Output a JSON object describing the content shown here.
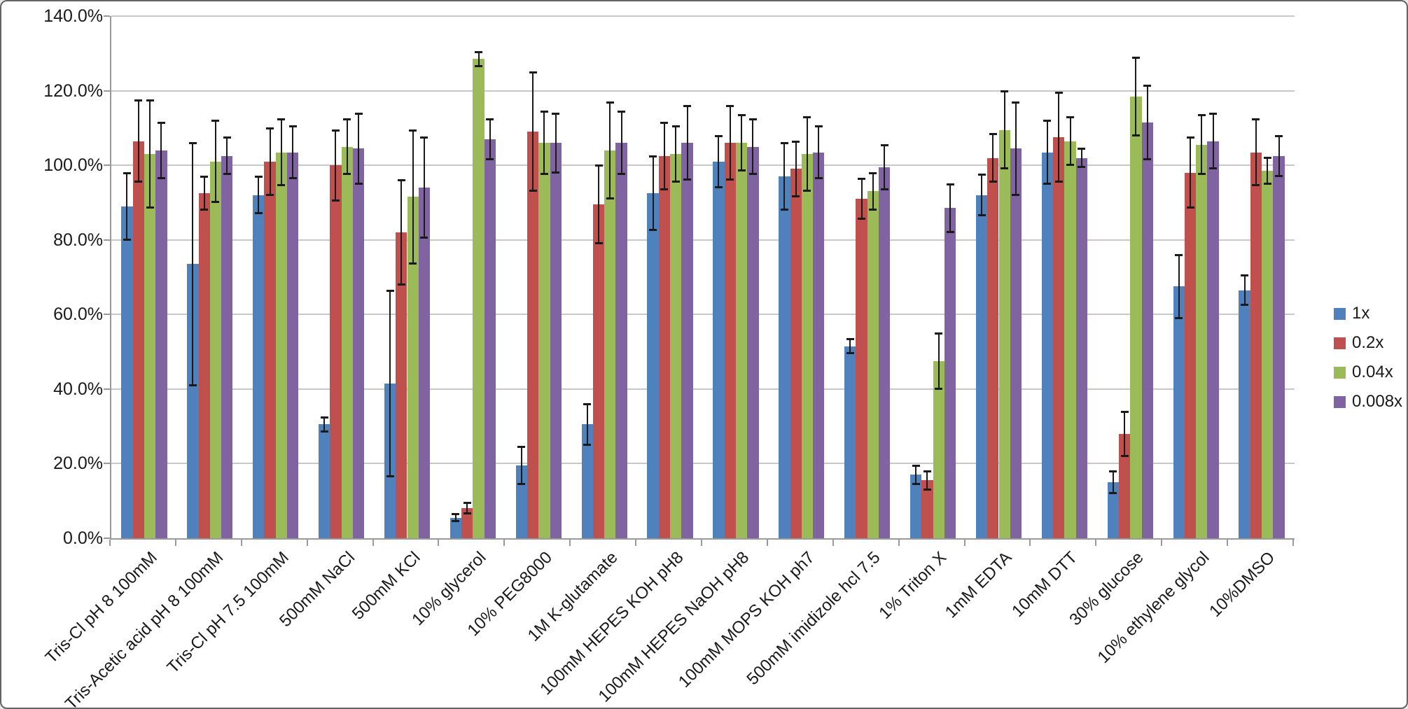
{
  "window": {
    "background": "#ffffff",
    "border_color": "#646464"
  },
  "chart_data": {
    "type": "bar",
    "title": "",
    "xlabel": "",
    "ylabel": "",
    "grid": true,
    "legend_position": "right",
    "error_bar_color": "#1a1a1a",
    "axis_color": "#9a9a9a",
    "gridline_color": "#c8c8c8",
    "categories": [
      "Tris-Cl pH 8 100mM",
      "Tris-Acetic acid pH 8 100mM",
      "Tris-Cl pH 7.5 100mM",
      "500mM NaCl",
      "500mM KCl",
      "10% glycerol",
      "10% PEG8000",
      "1M K-glutamate",
      "100mM HEPES KOH pH8",
      "100mM HEPES NaOH pH8",
      "100mM MOPS KOH ph7",
      "500mM imidizole hcl  7.5",
      "1% Triton X",
      "1mM EDTA",
      "10mM DTT",
      "30% glucose",
      "10% ethylene glycol",
      "10%DMSO"
    ],
    "series": [
      {
        "name": "1x",
        "color": "#4F81BD",
        "values": [
          89,
          73.5,
          92,
          30.5,
          41.5,
          5.5,
          19.5,
          30.5,
          92.5,
          101,
          97,
          51.5,
          17,
          92,
          103.5,
          15,
          67.5,
          66.5
        ],
        "errors": [
          9,
          32.5,
          5,
          2,
          25,
          1,
          5,
          5.5,
          10,
          7,
          9,
          2,
          2.5,
          5.5,
          8.5,
          3,
          8.5,
          4
        ]
      },
      {
        "name": "0.2x",
        "color": "#C0504D",
        "values": [
          106.5,
          92.5,
          101,
          100,
          82,
          8,
          109,
          89.5,
          102.5,
          106,
          99,
          91,
          15.5,
          102,
          107.5,
          28,
          98,
          103.5
        ],
        "errors": [
          11,
          4.5,
          9,
          9.5,
          14,
          1.5,
          16,
          10.5,
          9,
          10,
          7.5,
          5.5,
          2.5,
          6.5,
          12,
          6,
          9.5,
          9
        ]
      },
      {
        "name": "0.04x",
        "color": "#9BBB59",
        "values": [
          103,
          101,
          103.5,
          105,
          91.5,
          128.5,
          106,
          104,
          103,
          106,
          103,
          93,
          47.5,
          109.5,
          106.5,
          118.5,
          105.5,
          98.5
        ],
        "errors": [
          14.5,
          11,
          9,
          7.5,
          18,
          2,
          8.5,
          13,
          7.5,
          7.5,
          10,
          5,
          7.5,
          10.5,
          6.5,
          10.5,
          8,
          3.5
        ]
      },
      {
        "name": "0.008x",
        "color": "#8064A2",
        "values": [
          104,
          102.5,
          103.5,
          104.5,
          94,
          107,
          106,
          106,
          106,
          105,
          103.5,
          99.5,
          88.5,
          104.5,
          102,
          111.5,
          106.5,
          102.5
        ],
        "errors": [
          7.5,
          5,
          7,
          9.5,
          13.5,
          5.5,
          8,
          8.5,
          10,
          7.5,
          7,
          6,
          6.5,
          12.5,
          2.5,
          10,
          7.5,
          5.5
        ]
      }
    ],
    "y_axis": {
      "min": 0,
      "max": 140,
      "step": 20,
      "tick_labels": [
        "140.0%",
        "120.0%",
        "100.0%",
        "80.0%",
        "60.0%",
        "40.0%",
        "20.0%",
        "0.0%"
      ]
    }
  }
}
